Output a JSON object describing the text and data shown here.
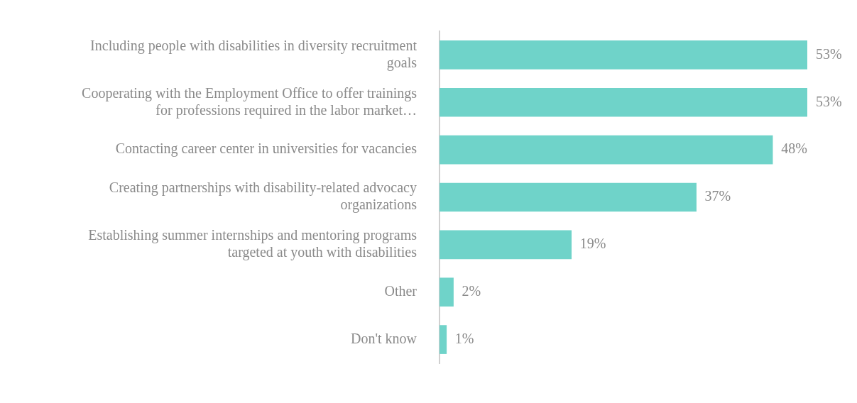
{
  "chart_data": {
    "type": "bar",
    "orientation": "horizontal",
    "categories": [
      "Including people with disabilities in diversity recruitment goals",
      "Cooperating with the Employment Office to offer trainings for professions required in the labor market…",
      "Contacting career center in universities for vacancies",
      "Creating partnerships with disability-related advocacy organizations",
      "Establishing summer internships and mentoring programs targeted at youth with disabilities",
      "Other",
      "Don't know"
    ],
    "values": [
      53,
      53,
      48,
      37,
      19,
      2,
      1
    ],
    "value_labels": [
      "53%",
      "53%",
      "48%",
      "37%",
      "19%",
      "2%",
      "1%"
    ],
    "color": "#6fd3c9",
    "grid": false,
    "legend": false
  }
}
